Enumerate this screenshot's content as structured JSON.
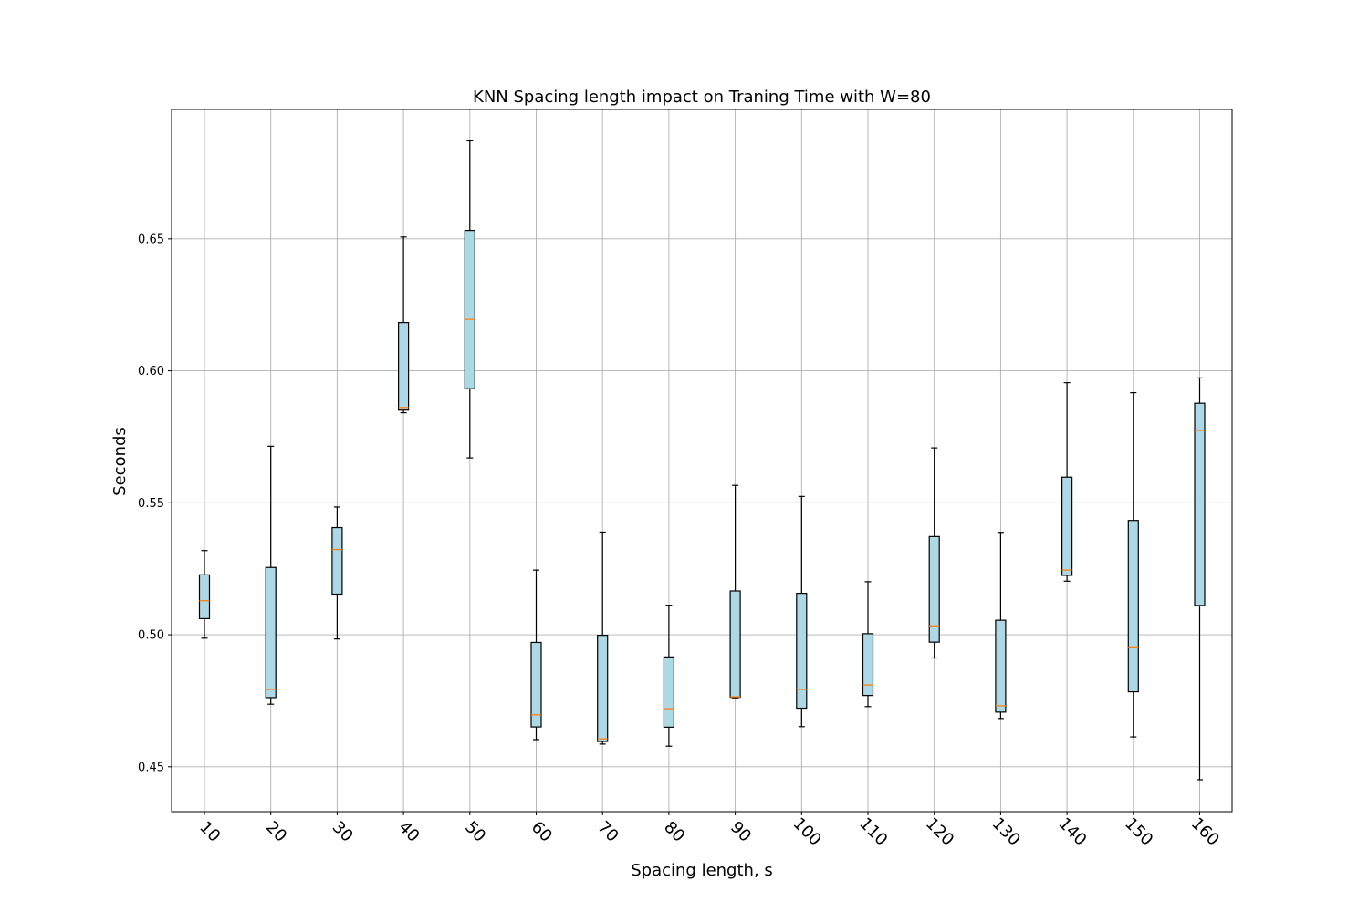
{
  "chart_data": {
    "type": "box",
    "title": "KNN Spacing length impact on Traning Time with W=80",
    "xlabel": "Spacing length, s",
    "ylabel": "Seconds",
    "ylim": [
      0.433,
      0.699
    ],
    "grid": true,
    "box_color": "#add8e6",
    "median_color": "#ff7f0e",
    "yticks": [
      {
        "value": 0.45,
        "label": "0.45"
      },
      {
        "value": 0.5,
        "label": "0.50"
      },
      {
        "value": 0.55,
        "label": "0.55"
      },
      {
        "value": 0.6,
        "label": "0.60"
      },
      {
        "value": 0.65,
        "label": "0.65"
      }
    ],
    "categories": [
      "10",
      "20",
      "30",
      "40",
      "50",
      "60",
      "70",
      "80",
      "90",
      "100",
      "110",
      "120",
      "130",
      "140",
      "150",
      "160"
    ],
    "boxes": [
      {
        "whislo": 0.4987,
        "q1": 0.5061,
        "med": 0.5129,
        "q3": 0.5227,
        "whishi": 0.5319
      },
      {
        "whislo": 0.4737,
        "q1": 0.4762,
        "med": 0.4793,
        "q3": 0.5255,
        "whishi": 0.5714
      },
      {
        "whislo": 0.4984,
        "q1": 0.5154,
        "med": 0.5323,
        "q3": 0.5406,
        "whishi": 0.5484
      },
      {
        "whislo": 0.5841,
        "q1": 0.5851,
        "med": 0.5861,
        "q3": 0.6183,
        "whishi": 0.6507
      },
      {
        "whislo": 0.567,
        "q1": 0.5932,
        "med": 0.6195,
        "q3": 0.6532,
        "whishi": 0.6871
      },
      {
        "whislo": 0.4603,
        "q1": 0.4651,
        "med": 0.4697,
        "q3": 0.4971,
        "whishi": 0.5245
      },
      {
        "whislo": 0.4586,
        "q1": 0.4596,
        "med": 0.4606,
        "q3": 0.4998,
        "whishi": 0.5389
      },
      {
        "whislo": 0.4578,
        "q1": 0.465,
        "med": 0.472,
        "q3": 0.4916,
        "whishi": 0.5112
      },
      {
        "whislo": 0.4761,
        "q1": 0.4763,
        "med": 0.4765,
        "q3": 0.5166,
        "whishi": 0.5566
      },
      {
        "whislo": 0.4652,
        "q1": 0.4722,
        "med": 0.4793,
        "q3": 0.5157,
        "whishi": 0.5524
      },
      {
        "whislo": 0.4728,
        "q1": 0.477,
        "med": 0.481,
        "q3": 0.5004,
        "whishi": 0.5201
      },
      {
        "whislo": 0.4912,
        "q1": 0.4972,
        "med": 0.5034,
        "q3": 0.5372,
        "whishi": 0.5708
      },
      {
        "whislo": 0.4683,
        "q1": 0.4707,
        "med": 0.4731,
        "q3": 0.5055,
        "whishi": 0.5388
      },
      {
        "whislo": 0.5203,
        "q1": 0.5225,
        "med": 0.5245,
        "q3": 0.5597,
        "whishi": 0.5955
      },
      {
        "whislo": 0.4613,
        "q1": 0.4784,
        "med": 0.4954,
        "q3": 0.5433,
        "whishi": 0.5917
      },
      {
        "whislo": 0.4451,
        "q1": 0.5111,
        "med": 0.5774,
        "q3": 0.5877,
        "whishi": 0.5973
      }
    ]
  }
}
